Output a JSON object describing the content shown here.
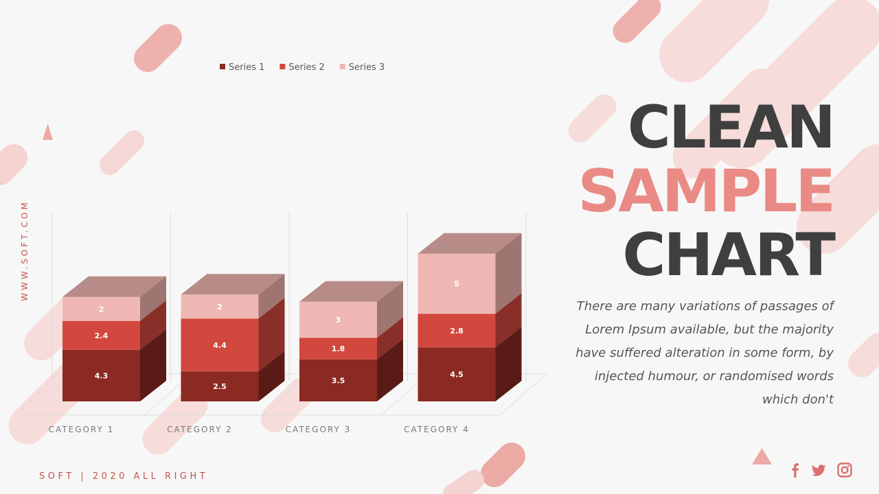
{
  "heading": {
    "line1": "CLEAN",
    "line2": "SAMPLE",
    "line3": "CHART"
  },
  "description": "There are many variations of passages of Lorem Ipsum available, but the majority have suffered alteration in some form, by injected humour, or randomised words which don't",
  "side_url": "WWW.SOFT.COM",
  "footer": "SOFT | 2020 ALL RIGHT",
  "social_icons": [
    "facebook-icon",
    "twitter-icon",
    "instagram-icon"
  ],
  "colors": {
    "accent": "#e98a85",
    "dark_text": "#3f3f3f",
    "series1": "#8b2a22",
    "series2": "#d2473e",
    "series3": "#efb8b4"
  },
  "chart_data": {
    "type": "bar",
    "stacked": true,
    "three_d": true,
    "categories": [
      "CATEGORY 1",
      "CATEGORY 2",
      "CATEGORY 3",
      "CATEGORY 4"
    ],
    "series": [
      {
        "name": "Series 1",
        "values": [
          4.3,
          2.5,
          3.5,
          4.5
        ],
        "color": "#8b2a22"
      },
      {
        "name": "Series 2",
        "values": [
          2.4,
          4.4,
          1.8,
          2.8
        ],
        "color": "#d2473e"
      },
      {
        "name": "Series 3",
        "values": [
          2,
          2,
          3,
          5
        ],
        "color": "#efb8b4"
      }
    ],
    "ylim": [
      0,
      14
    ],
    "legend": "top",
    "data_labels": true,
    "grid": true
  }
}
